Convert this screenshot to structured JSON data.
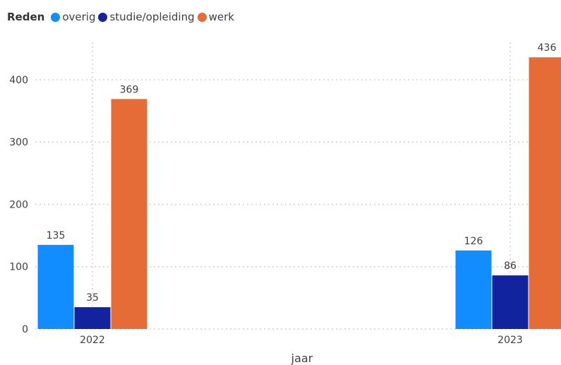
{
  "chart_data": {
    "type": "bar",
    "legend": {
      "title": "Reden",
      "placement": "top-left"
    },
    "categories": [
      "2022",
      "2023"
    ],
    "series": [
      {
        "name": "overig",
        "color": "#118DFF",
        "values": [
          135,
          126
        ]
      },
      {
        "name": "studie/opleiding",
        "color": "#12239E",
        "values": [
          35,
          86
        ]
      },
      {
        "name": "werk",
        "color": "#E66C37",
        "values": [
          369,
          436
        ]
      }
    ],
    "xlabel": "jaar",
    "ylabel": "",
    "ylim": [
      0,
      460
    ],
    "yticks": [
      0,
      100,
      200,
      300,
      400
    ],
    "grid": true,
    "data_labels": true
  }
}
